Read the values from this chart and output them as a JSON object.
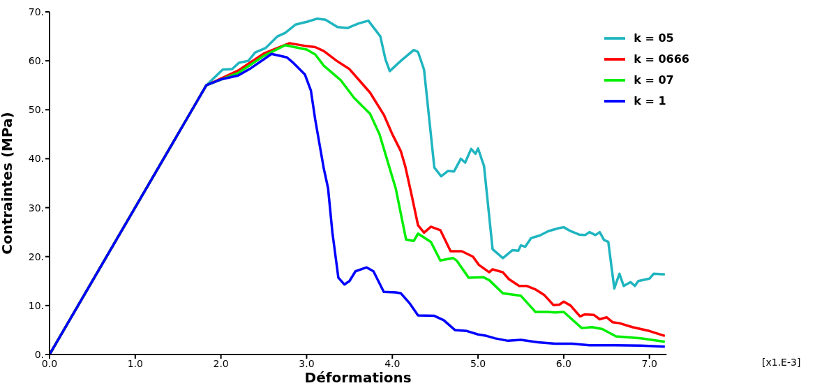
{
  "chart_data": {
    "type": "line",
    "xlabel": "Déformations",
    "ylabel": "Contraintes (MPa)",
    "annotations": [
      "[x1.E-3]"
    ],
    "xlim": [
      0,
      7.2
    ],
    "ylim": [
      0,
      70
    ],
    "xticks": [
      {
        "value": 0,
        "label": "0.0"
      },
      {
        "value": 1,
        "label": "1.0"
      },
      {
        "value": 2,
        "label": "2.0"
      },
      {
        "value": 3,
        "label": "3.0"
      },
      {
        "value": 4,
        "label": "4.0"
      },
      {
        "value": 5,
        "label": "5.0"
      },
      {
        "value": 6,
        "label": "6.0"
      },
      {
        "value": 7,
        "label": "7.0"
      }
    ],
    "yticks": [
      {
        "value": 0,
        "label": "0."
      },
      {
        "value": 10,
        "label": "10."
      },
      {
        "value": 20,
        "label": "20."
      },
      {
        "value": 30,
        "label": "30."
      },
      {
        "value": 40,
        "label": "40."
      },
      {
        "value": 50,
        "label": "50."
      },
      {
        "value": 60,
        "label": "60."
      },
      {
        "value": 70,
        "label": "70."
      }
    ],
    "legend": "top right",
    "marker": "none",
    "line_style": "solid",
    "series": [
      {
        "name": "k = 05",
        "color": "#1fb5c0",
        "x": [
          0,
          1.83,
          2.02,
          2.13,
          2.21,
          2.32,
          2.4,
          2.52,
          2.66,
          2.75,
          2.87,
          3.01,
          3.12,
          3.22,
          3.36,
          3.48,
          3.6,
          3.72,
          3.86,
          3.92,
          3.97,
          4.1,
          4.25,
          4.3,
          4.37,
          4.49,
          4.57,
          4.65,
          4.72,
          4.8,
          4.85,
          4.92,
          4.97,
          5.0,
          5.07,
          5.17,
          5.29,
          5.4,
          5.47,
          5.5,
          5.55,
          5.62,
          5.72,
          5.82,
          5.94,
          6.0,
          6.08,
          6.18,
          6.25,
          6.3,
          6.37,
          6.42,
          6.47,
          6.52,
          6.59,
          6.65,
          6.7,
          6.78,
          6.83,
          6.87,
          7.0,
          7.05,
          7.15,
          7.18
        ],
        "values": [
          0,
          55,
          58.2,
          58.3,
          59.6,
          60,
          61.7,
          62.6,
          65,
          65.7,
          67.4,
          68,
          68.6,
          68.4,
          66.9,
          66.7,
          67.6,
          68.2,
          65,
          60.3,
          57.9,
          60,
          62.2,
          61.8,
          58.2,
          38.2,
          36.4,
          37.5,
          37.4,
          40,
          39.2,
          42,
          41,
          42.1,
          38.5,
          21.5,
          19.7,
          21.3,
          21.2,
          22.3,
          22,
          23.8,
          24.3,
          25.2,
          25.8,
          26,
          25.2,
          24.5,
          24.4,
          25,
          24.4,
          25,
          23.4,
          23,
          13.5,
          16.5,
          14,
          14.8,
          14,
          15,
          15.5,
          16.5,
          16.4,
          16.4
        ]
      },
      {
        "name": "k = 0666",
        "color": "#ff0000",
        "x": [
          0,
          1.83,
          2.2,
          2.5,
          2.8,
          3.0,
          3.1,
          3.2,
          3.35,
          3.5,
          3.74,
          3.9,
          4.0,
          4.1,
          4.15,
          4.22,
          4.3,
          4.37,
          4.45,
          4.56,
          4.68,
          4.81,
          4.94,
          5.01,
          5.13,
          5.17,
          5.29,
          5.36,
          5.48,
          5.57,
          5.67,
          5.77,
          5.88,
          5.95,
          6.0,
          6.08,
          6.19,
          6.25,
          6.35,
          6.42,
          6.5,
          6.57,
          6.65,
          6.8,
          7.0,
          7.18
        ],
        "values": [
          0,
          55,
          58,
          61.5,
          63.6,
          63,
          62.8,
          62,
          60,
          58.3,
          53.5,
          49,
          45,
          41.5,
          38.5,
          33,
          26.4,
          24.9,
          26.1,
          25.4,
          21.1,
          21.1,
          20,
          18.3,
          16.8,
          17.4,
          16.8,
          15.4,
          14,
          14,
          13.3,
          12.2,
          10.1,
          10.2,
          10.8,
          10,
          7.8,
          8.2,
          8.1,
          7.2,
          7.6,
          6.6,
          6.4,
          5.6,
          4.8,
          3.8
        ]
      },
      {
        "name": "k = 07",
        "color": "#00ee00",
        "x": [
          0,
          1.83,
          2.2,
          2.5,
          2.75,
          3.0,
          3.1,
          3.2,
          3.4,
          3.55,
          3.74,
          3.85,
          4.04,
          4.16,
          4.25,
          4.3,
          4.45,
          4.56,
          4.71,
          4.75,
          4.89,
          5.06,
          5.13,
          5.29,
          5.5,
          5.67,
          5.81,
          5.9,
          6.0,
          6.21,
          6.33,
          6.45,
          6.61,
          6.9,
          7.18
        ],
        "values": [
          0,
          55,
          57.5,
          61,
          63.2,
          62.3,
          61.3,
          59,
          56,
          52.5,
          49.2,
          45,
          33.9,
          23.5,
          23.2,
          24.7,
          23,
          19.2,
          19.7,
          19.2,
          15.7,
          15.8,
          15.2,
          12.5,
          12,
          8.7,
          8.7,
          8.6,
          8.7,
          5.4,
          5.6,
          5.2,
          3.7,
          3.3,
          2.6
        ]
      },
      {
        "name": "k = 1",
        "color": "#0000ff",
        "x": [
          0,
          1.83,
          2.0,
          2.2,
          2.35,
          2.5,
          2.59,
          2.77,
          2.85,
          2.98,
          3.05,
          3.1,
          3.2,
          3.25,
          3.3,
          3.37,
          3.44,
          3.5,
          3.57,
          3.7,
          3.78,
          3.9,
          4.04,
          4.1,
          4.2,
          4.3,
          4.49,
          4.6,
          4.73,
          4.87,
          5.0,
          5.1,
          5.2,
          5.35,
          5.5,
          5.7,
          5.9,
          6.1,
          6.3,
          6.6,
          6.9,
          7.18
        ],
        "values": [
          0,
          55,
          56.2,
          57,
          58.5,
          60.3,
          61.4,
          60.7,
          59.5,
          57.2,
          53.9,
          48,
          38,
          34,
          25,
          15.7,
          14.3,
          15,
          17,
          17.8,
          17,
          12.8,
          12.7,
          12.5,
          10.5,
          8,
          7.9,
          7,
          5,
          4.8,
          4.1,
          3.8,
          3.3,
          2.8,
          3,
          2.5,
          2.2,
          2.2,
          1.9,
          1.9,
          1.8,
          1.6
        ]
      }
    ]
  }
}
